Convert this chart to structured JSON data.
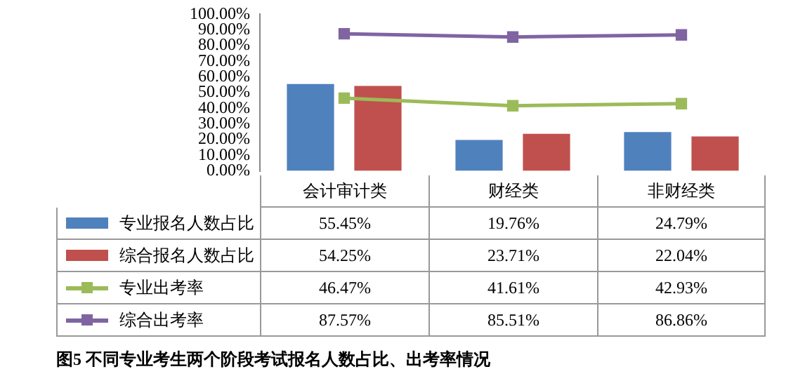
{
  "chart_data": {
    "type": "bar",
    "title": "图5  不同专业考生两个阶段考试报名人数占比、出考率情况",
    "categories": [
      "会计审计类",
      "财经类",
      "非财经类"
    ],
    "series": [
      {
        "name": "专业报名人数占比",
        "color": "#4f81bd",
        "values": [
          55.45,
          19.76,
          24.79
        ],
        "value_labels": [
          "55.45%",
          "19.76%",
          "24.79%"
        ]
      },
      {
        "name": "综合报名人数占比",
        "color": "#c0504d",
        "values": [
          54.25,
          23.71,
          22.04
        ],
        "value_labels": [
          "54.25%",
          "23.71%",
          "22.04%"
        ]
      },
      {
        "name": "专业出考率",
        "type": "line",
        "color": "#9bbb59",
        "values": [
          46.47,
          41.61,
          42.93
        ],
        "value_labels": [
          "46.47%",
          "41.61%",
          "42.93%"
        ]
      },
      {
        "name": "综合出考率",
        "type": "line",
        "color": "#8064a2",
        "values": [
          87.57,
          85.51,
          86.86
        ],
        "value_labels": [
          "87.57%",
          "85.51%",
          "86.86%"
        ]
      }
    ],
    "ylim": [
      0,
      100
    ],
    "yticks": [
      {
        "value": 0,
        "label": "0.00%"
      },
      {
        "value": 10,
        "label": "10.00%"
      },
      {
        "value": 20,
        "label": "20.00%"
      },
      {
        "value": 30,
        "label": "30.00%"
      },
      {
        "value": 40,
        "label": "40.00%"
      },
      {
        "value": 50,
        "label": "50.00%"
      },
      {
        "value": 60,
        "label": "60.00%"
      },
      {
        "value": 70,
        "label": "70.00%"
      },
      {
        "value": 80,
        "label": "80.00%"
      },
      {
        "value": 90,
        "label": "90.00%"
      },
      {
        "value": 100,
        "label": "100.00%"
      }
    ],
    "marker": "square",
    "legend": "bottom",
    "grid": false
  }
}
